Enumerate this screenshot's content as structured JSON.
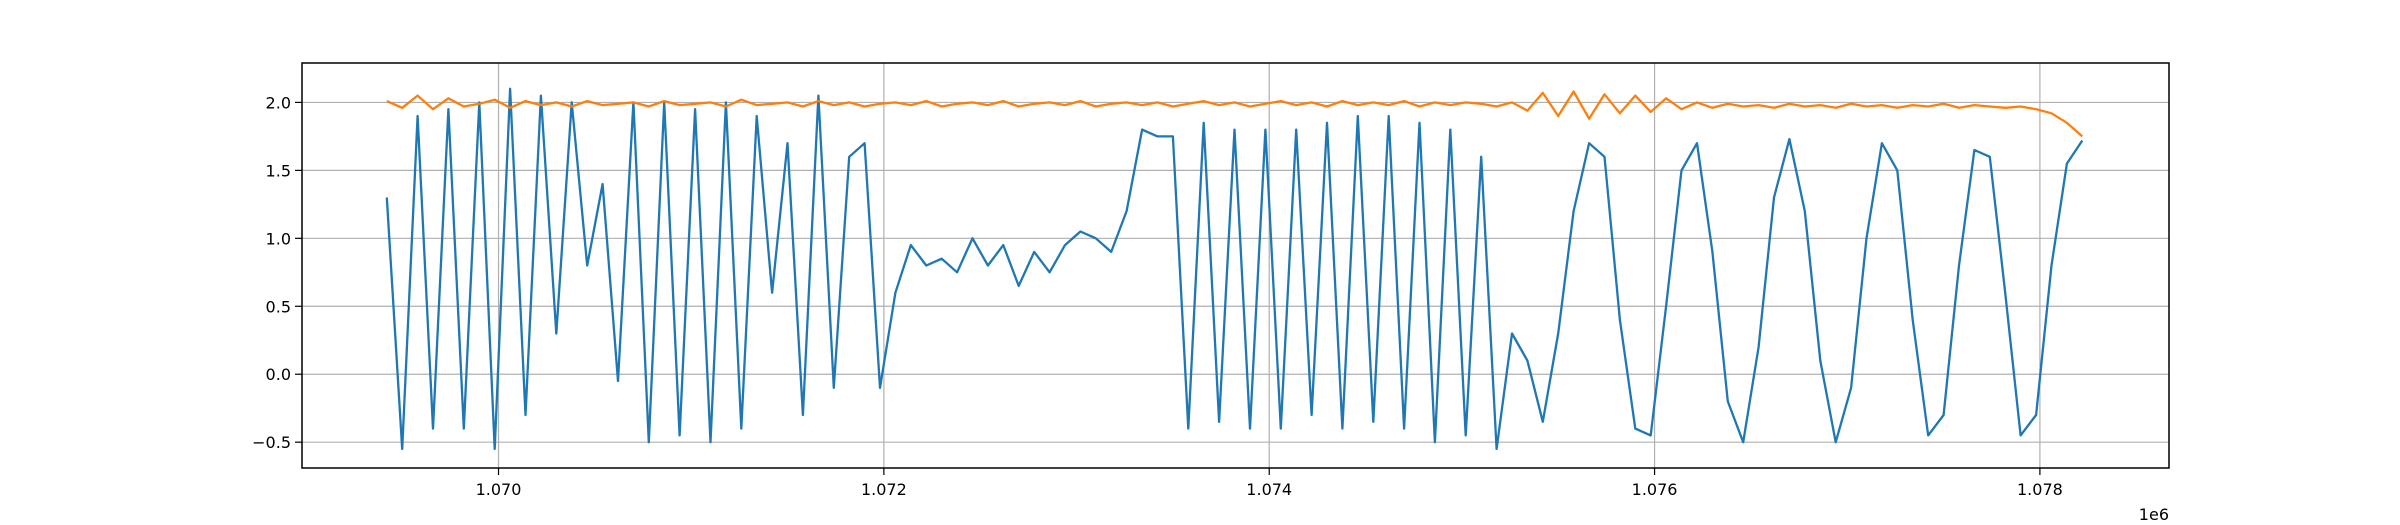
{
  "chart_data": {
    "type": "line",
    "x": [
      1069420,
      1069500,
      1069580,
      1069660,
      1069740,
      1069820,
      1069900,
      1069980,
      1070060,
      1070140,
      1070220,
      1070300,
      1070380,
      1070460,
      1070540,
      1070620,
      1070700,
      1070780,
      1070860,
      1070940,
      1071020,
      1071100,
      1071180,
      1071260,
      1071340,
      1071420,
      1071500,
      1071580,
      1071660,
      1071740,
      1071820,
      1071900,
      1071980,
      1072060,
      1072140,
      1072220,
      1072300,
      1072380,
      1072460,
      1072540,
      1072620,
      1072700,
      1072780,
      1072860,
      1072940,
      1073020,
      1073100,
      1073180,
      1073260,
      1073340,
      1073420,
      1073500,
      1073580,
      1073660,
      1073740,
      1073820,
      1073900,
      1073980,
      1074060,
      1074140,
      1074220,
      1074300,
      1074380,
      1074460,
      1074540,
      1074620,
      1074700,
      1074780,
      1074860,
      1074940,
      1075020,
      1075100,
      1075180,
      1075260,
      1075340,
      1075420,
      1075500,
      1075580,
      1075660,
      1075740,
      1075820,
      1075900,
      1075980,
      1076060,
      1076140,
      1076220,
      1076300,
      1076380,
      1076460,
      1076540,
      1076620,
      1076700,
      1076780,
      1076860,
      1076940,
      1077020,
      1077100,
      1077180,
      1077260,
      1077340,
      1077420,
      1077500,
      1077580,
      1077660,
      1077740,
      1077820,
      1077900,
      1077980,
      1078060,
      1078140,
      1078220
    ],
    "series": [
      {
        "color": "#1f77b4",
        "values": [
          1.3,
          -0.55,
          1.9,
          -0.4,
          1.95,
          -0.4,
          2.0,
          -0.55,
          2.1,
          -0.3,
          2.05,
          0.3,
          2.0,
          0.8,
          1.4,
          -0.05,
          2.0,
          -0.5,
          2.0,
          -0.45,
          1.95,
          -0.5,
          2.0,
          -0.4,
          1.9,
          0.6,
          1.7,
          -0.3,
          2.05,
          -0.1,
          1.6,
          1.7,
          -0.1,
          0.6,
          0.95,
          0.8,
          0.85,
          0.75,
          1.0,
          0.8,
          0.95,
          0.65,
          0.9,
          0.75,
          0.95,
          1.05,
          1.0,
          0.9,
          1.2,
          1.8,
          1.75,
          1.75,
          -0.4,
          1.85,
          -0.35,
          1.8,
          -0.4,
          1.8,
          -0.4,
          1.8,
          -0.3,
          1.85,
          -0.4,
          1.9,
          -0.35,
          1.9,
          -0.4,
          1.85,
          -0.5,
          1.8,
          -0.45,
          1.6,
          -0.55,
          0.3,
          0.1,
          -0.35,
          0.3,
          1.2,
          1.7,
          1.6,
          0.4,
          -0.4,
          -0.45,
          0.5,
          1.5,
          1.7,
          0.9,
          -0.2,
          -0.5,
          0.2,
          1.3,
          1.73,
          1.2,
          0.1,
          -0.5,
          -0.1,
          1.0,
          1.7,
          1.5,
          0.4,
          -0.45,
          -0.3,
          0.8,
          1.65,
          1.6,
          0.6,
          -0.45,
          -0.3,
          0.8,
          1.55,
          1.72
        ]
      },
      {
        "color": "#ff7f0e",
        "values": [
          2.01,
          1.96,
          2.05,
          1.95,
          2.03,
          1.97,
          1.99,
          2.02,
          1.96,
          2.01,
          1.98,
          2.0,
          1.97,
          2.01,
          1.98,
          1.99,
          2.0,
          1.97,
          2.01,
          1.98,
          1.99,
          2.0,
          1.97,
          2.02,
          1.98,
          1.99,
          2.0,
          1.97,
          2.01,
          1.98,
          2.0,
          1.97,
          1.99,
          2.0,
          1.98,
          2.01,
          1.97,
          1.99,
          2.0,
          1.98,
          2.01,
          1.97,
          1.99,
          2.0,
          1.98,
          2.01,
          1.97,
          1.99,
          2.0,
          1.98,
          2.0,
          1.97,
          1.99,
          2.01,
          1.98,
          2.0,
          1.97,
          1.99,
          2.01,
          1.98,
          2.0,
          1.97,
          2.01,
          1.98,
          2.0,
          1.98,
          2.01,
          1.97,
          2.0,
          1.98,
          2.0,
          1.99,
          1.97,
          2.0,
          1.94,
          2.07,
          1.9,
          2.08,
          1.88,
          2.06,
          1.92,
          2.05,
          1.93,
          2.03,
          1.95,
          2.0,
          1.96,
          1.99,
          1.97,
          1.98,
          1.96,
          1.99,
          1.97,
          1.98,
          1.96,
          1.99,
          1.97,
          1.98,
          1.96,
          1.98,
          1.97,
          1.99,
          1.96,
          1.98,
          1.97,
          1.96,
          1.97,
          1.95,
          1.92,
          1.85,
          1.75
        ]
      }
    ],
    "xlim": [
      1068980,
      1078670
    ],
    "ylim": [
      -0.69,
      2.29
    ],
    "xticks": [
      {
        "value": 1070000,
        "label": "1.070"
      },
      {
        "value": 1072000,
        "label": "1.072"
      },
      {
        "value": 1074000,
        "label": "1.074"
      },
      {
        "value": 1076000,
        "label": "1.076"
      },
      {
        "value": 1078000,
        "label": "1.078"
      }
    ],
    "yticks": [
      {
        "value": -0.5,
        "label": "−0.5"
      },
      {
        "value": 0,
        "label": "0.0"
      },
      0.5,
      {
        "value": 1,
        "label": "1.0"
      },
      1.5,
      {
        "value": 2,
        "label": "2.0"
      }
    ],
    "x_offset_text": "1e6",
    "grid": true
  }
}
